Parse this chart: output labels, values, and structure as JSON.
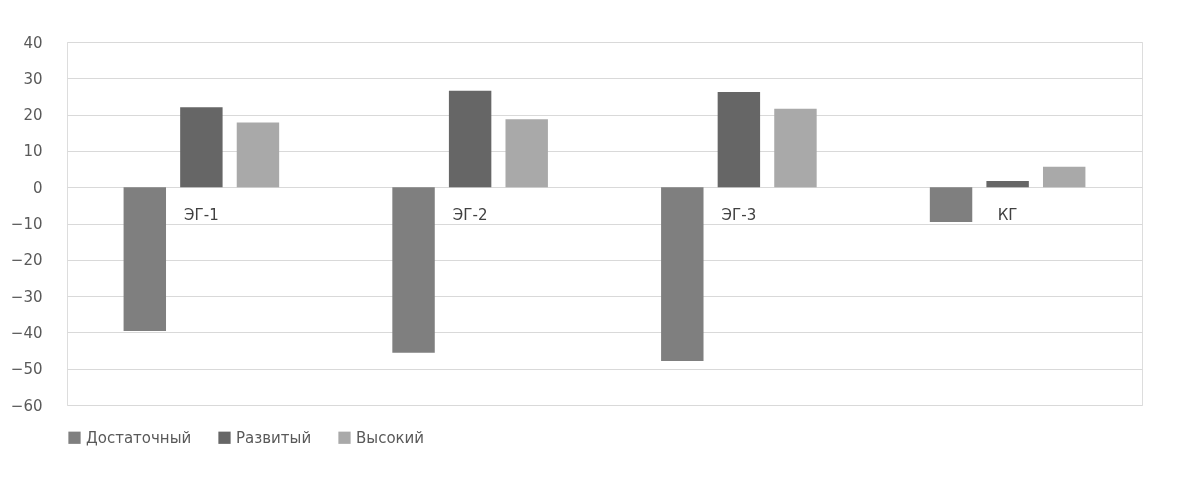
{
  "chart_data": {
    "type": "bar",
    "categories": [
      "ЭГ-1",
      "ЭГ-2",
      "ЭГ-3",
      "КГ"
    ],
    "series": [
      {
        "name": "Достаточный",
        "color": "#7f7f7f",
        "values": [
          -39.6,
          -45.6,
          -47.9,
          -9.6
        ]
      },
      {
        "name": "Развитый",
        "color": "#666666",
        "values": [
          22.0,
          26.6,
          26.2,
          1.7
        ]
      },
      {
        "name": "Высокий",
        "color": "#a9a9a9",
        "values": [
          17.8,
          18.7,
          21.6,
          5.6
        ]
      }
    ],
    "ylim": [
      -60,
      40
    ],
    "yticks": [
      -60,
      -50,
      -40,
      -30,
      -20,
      -10,
      0,
      10,
      20,
      30,
      40
    ],
    "grid": "y",
    "legend": "bottom"
  }
}
